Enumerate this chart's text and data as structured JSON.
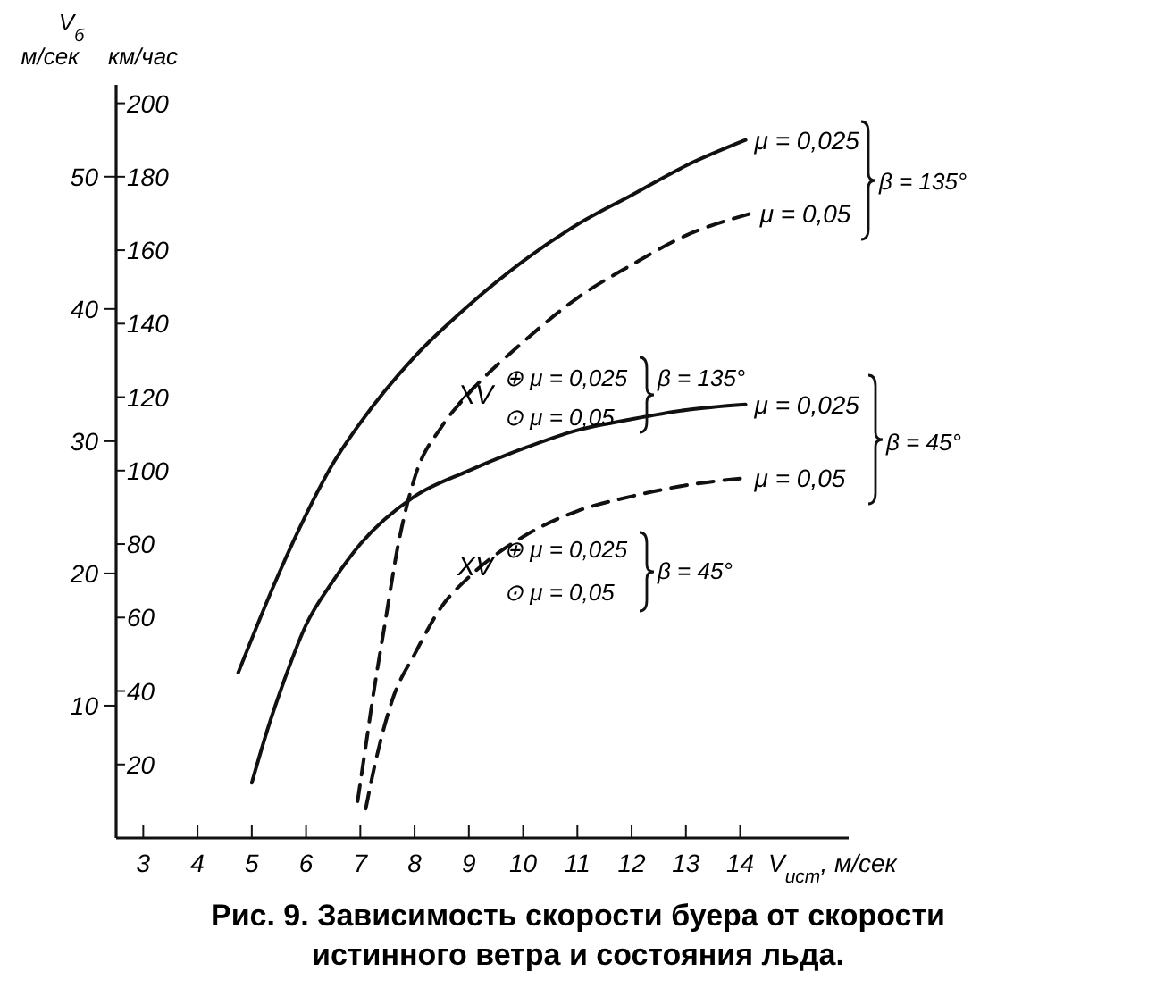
{
  "chart_data": {
    "type": "line",
    "title": "Рис. 9. Зависимость скорости буера от скорости истинного ветра и состояния льда.",
    "xlabel": "V$_{ист}$, м/сек",
    "ylabel": "км/час",
    "y2label": "м/сек",
    "xlim": [
      2.5,
      16
    ],
    "xticks": [
      3,
      4,
      5,
      6,
      7,
      8,
      9,
      10,
      11,
      12,
      13,
      14
    ],
    "ylim": [
      0,
      205
    ],
    "yticks": [
      20,
      40,
      60,
      80,
      100,
      120,
      140,
      160,
      180,
      200
    ],
    "y2lim": [
      0,
      56.94
    ],
    "y2ticks": [
      10,
      20,
      30,
      40,
      50
    ],
    "annotations": [
      "V$_{б}$",
      "β = 135°",
      "β = 45°",
      "XV",
      "⊕ μ = 0,025",
      "⊙ μ = 0,05",
      "β = 135°",
      "XV",
      "⊕ μ = 0,025",
      "⊙ μ = 0,05",
      "β = 45°"
    ],
    "series": [
      {
        "name": "μ = 0,025",
        "color": "#111111",
        "line_style": "solid",
        "x": [
          4.75,
          5.5,
          6,
          6.5,
          7,
          8,
          9,
          10,
          11,
          12,
          13,
          14.1
        ],
        "values": [
          45,
          72,
          88,
          102,
          113,
          131,
          145,
          157,
          167,
          175,
          183,
          190
        ]
      },
      {
        "name": "μ = 0,05",
        "color": "#111111",
        "line_style": "dashed",
        "x": [
          6.95,
          7.1,
          7.25,
          7.45,
          7.7,
          8,
          8.5,
          9,
          10,
          11,
          12,
          13,
          14.2
        ],
        "values": [
          10,
          25,
          40,
          58,
          80,
          98,
          112,
          121,
          135,
          147,
          156,
          164,
          170
        ]
      },
      {
        "name": "μ = 0,025",
        "color": "#111111",
        "line_style": "solid",
        "x": [
          5,
          5.3,
          5.6,
          6,
          6.5,
          7,
          8,
          9,
          10,
          11,
          12,
          13,
          14.1
        ],
        "values": [
          15,
          30,
          43,
          58,
          70,
          80,
          93,
          100,
          106,
          111,
          114,
          116.5,
          118
        ]
      },
      {
        "name": "μ = 0,05",
        "color": "#111111",
        "line_style": "dashed",
        "x": [
          7.1,
          7.3,
          7.6,
          8,
          8.5,
          9,
          10,
          11,
          12,
          13,
          14.1
        ],
        "values": [
          8,
          22,
          38,
          50,
          63,
          71,
          82,
          89,
          93,
          96,
          98
        ]
      }
    ]
  }
}
